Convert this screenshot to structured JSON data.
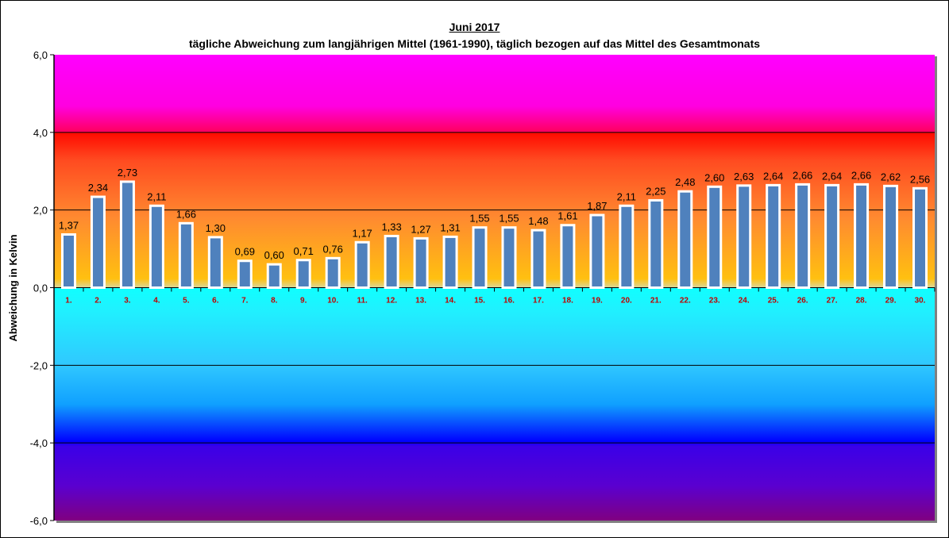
{
  "chart_data": {
    "type": "bar",
    "title": "Juni 2017",
    "subtitle": "tägliche Abweichung zum langjährigen Mittel (1961-1990), täglich bezogen auf das Mittel des Gesamtmonats",
    "xlabel": "",
    "ylabel": "Abweichung in Kelvin",
    "ylim": [
      -6,
      6
    ],
    "yticks": [
      6,
      4,
      2,
      0,
      -2,
      -4,
      -6
    ],
    "ytick_labels": [
      "6,0",
      "4,0",
      "2,0",
      "0,0",
      "-2,0",
      "-4,0",
      "-6,0"
    ],
    "grid": true,
    "categories": [
      "1.",
      "2.",
      "3.",
      "4.",
      "5.",
      "6.",
      "7.",
      "8.",
      "9.",
      "10.",
      "11.",
      "12.",
      "13.",
      "14.",
      "15.",
      "16.",
      "17.",
      "18.",
      "19.",
      "20.",
      "21.",
      "22.",
      "23.",
      "24.",
      "25.",
      "26.",
      "27.",
      "28.",
      "29.",
      "30."
    ],
    "values": [
      1.37,
      2.34,
      2.73,
      2.11,
      1.66,
      1.3,
      0.69,
      0.6,
      0.71,
      0.76,
      1.17,
      1.33,
      1.27,
      1.31,
      1.55,
      1.55,
      1.48,
      1.61,
      1.87,
      2.11,
      2.25,
      2.48,
      2.6,
      2.63,
      2.64,
      2.66,
      2.64,
      2.66,
      2.62,
      2.56
    ],
    "value_labels": [
      "1,37",
      "2,34",
      "2,73",
      "2,11",
      "1,66",
      "1,30",
      "0,69",
      "0,60",
      "0,71",
      "0,76",
      "1,17",
      "1,33",
      "1,27",
      "1,31",
      "1,55",
      "1,55",
      "1,48",
      "1,61",
      "1,87",
      "2,11",
      "2,25",
      "2,48",
      "2,60",
      "2,63",
      "2,64",
      "2,66",
      "2,64",
      "2,66",
      "2,62",
      "2,56"
    ],
    "bar_color": "#4f81bd",
    "legend": "none"
  }
}
